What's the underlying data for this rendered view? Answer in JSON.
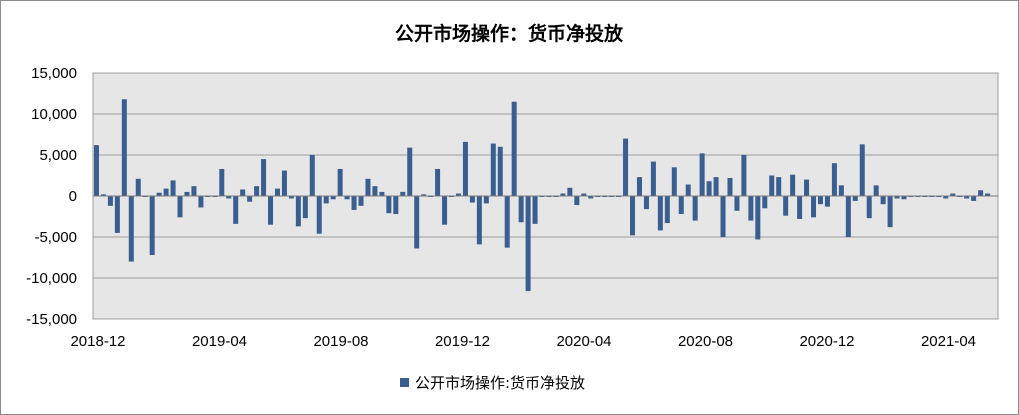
{
  "chart_data": {
    "type": "bar",
    "title": "公开市场操作：货币净投放",
    "legend": {
      "position": "bottom",
      "entries": [
        "公开市场操作:货币净投放"
      ]
    },
    "ylim": [
      -15000,
      15000
    ],
    "y_ticks": [
      15000,
      10000,
      5000,
      0,
      -5000,
      -10000,
      -15000
    ],
    "y_tick_labels": [
      "15,000",
      "10,000",
      "5,000",
      "0",
      "-5,000",
      "-10,000",
      "-15,000"
    ],
    "x_tick_labels": [
      "2018-12",
      "2019-04",
      "2019-08",
      "2019-12",
      "2020-04",
      "2020-08",
      "2020-12",
      "2021-04"
    ],
    "grid": true,
    "colors": {
      "bar": "#3b5e91",
      "plot_bg": "#e6e6e6",
      "grid": "#9e9e9e"
    },
    "series": [
      {
        "name": "公开市场操作:货币净投放",
        "values": [
          6200,
          200,
          -1200,
          -4500,
          11800,
          -8000,
          2100,
          0,
          -7200,
          400,
          900,
          1900,
          -2600,
          500,
          1200,
          -1400,
          0,
          0,
          3300,
          -300,
          -3400,
          800,
          -700,
          1200,
          4500,
          -3500,
          900,
          3100,
          -300,
          -3700,
          -2700,
          5000,
          -4600,
          -900,
          -400,
          3300,
          -400,
          -1700,
          -1200,
          2100,
          1200,
          500,
          -2100,
          -2200,
          500,
          5900,
          -6400,
          200,
          0,
          3300,
          -3500,
          0,
          300,
          6600,
          -800,
          -5900,
          -900,
          6400,
          6000,
          -6300,
          11500,
          -3200,
          -11600,
          -3400,
          0,
          0,
          0,
          300,
          1000,
          -1100,
          300,
          -300,
          0,
          0,
          0,
          0,
          7000,
          -4800,
          2300,
          -1600,
          4200,
          -4200,
          -3300,
          3500,
          -2200,
          1400,
          -3000,
          5200,
          1800,
          2300,
          -5000,
          2200,
          -1800,
          5000,
          -3000,
          -5300,
          -1500,
          2500,
          2300,
          -2400,
          2600,
          -2800,
          2000,
          -2600,
          -1000,
          -1300,
          4000,
          1300,
          -5000,
          -600,
          6300,
          -2700,
          1300,
          -1000,
          -3800,
          -300,
          -400,
          0,
          0,
          0,
          0,
          0,
          -300,
          300,
          0,
          -300,
          -600,
          700,
          300,
          null
        ]
      }
    ]
  }
}
